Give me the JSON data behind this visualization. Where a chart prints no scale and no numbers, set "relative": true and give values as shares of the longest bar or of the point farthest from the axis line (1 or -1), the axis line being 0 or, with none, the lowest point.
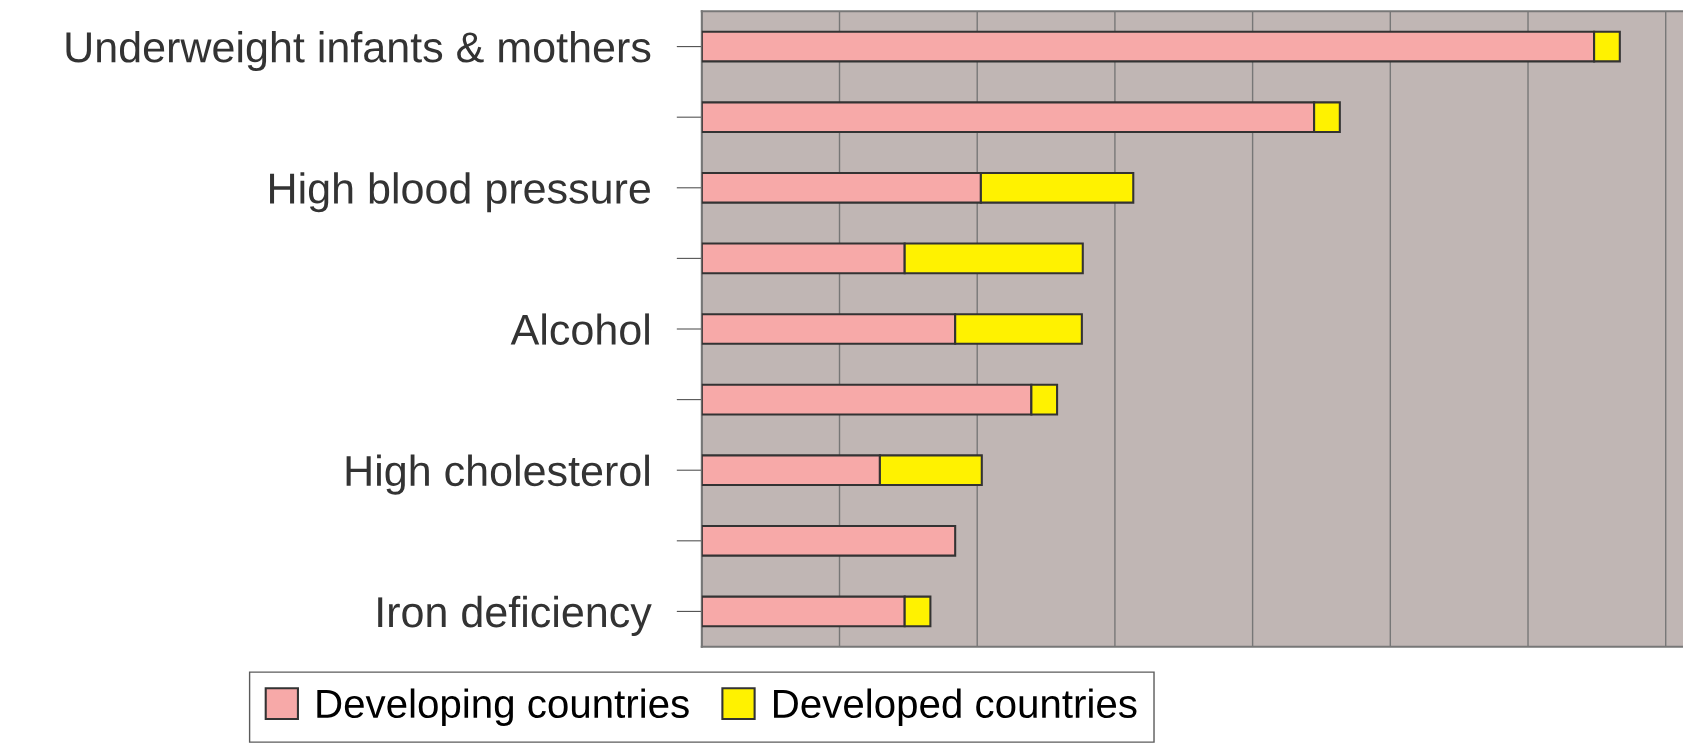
{
  "chart_data": {
    "type": "bar",
    "orientation": "horizontal",
    "stacked": true,
    "relative": true,
    "categories": [
      "Underweight infants & mothers",
      null,
      "High blood pressure",
      null,
      "Alcohol",
      null,
      "High cholesterol",
      null,
      "Iron deficiency"
    ],
    "series": [
      {
        "name": "Developing countries",
        "color": "#f7a9a8",
        "values": [
          0.972,
          0.667,
          0.304,
          0.221,
          0.276,
          0.359,
          0.194,
          0.276,
          0.221
        ]
      },
      {
        "name": "Developed countries",
        "color": "#fff200",
        "values": [
          0.028,
          0.028,
          0.166,
          0.194,
          0.138,
          0.028,
          0.111,
          null,
          0.028
        ]
      }
    ],
    "grid": "x",
    "legend": "bottom"
  }
}
